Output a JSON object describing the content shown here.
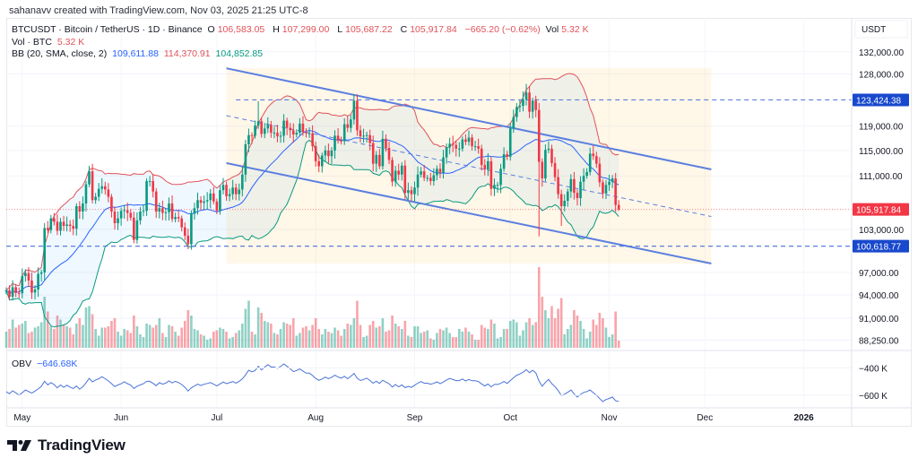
{
  "attribution": "sahanavv created with TradingView.com, Nov 03, 2025 21:25 UTC-8",
  "legend": {
    "symbol": "BTCUSDT · Bitcoin / TetherUS · 1D · Binance",
    "o_label": "O",
    "o": "106,583.05",
    "h_label": "H",
    "h": "107,299.00",
    "l_label": "L",
    "l": "105,687.22",
    "c_label": "C",
    "c": "105,917.84",
    "change": "−665.20 (−0.62%)",
    "vol_label": "Vol",
    "vol": "5.32 K",
    "vol_row_label": "Vol · BTC",
    "vol_row_value": "5.32 K",
    "bb_label": "BB (20, SMA, close, 2)",
    "bb_basis": "109,611.88",
    "bb_upper": "114,370.91",
    "bb_lower": "104,852.85"
  },
  "price_axis": {
    "unit": "USDT",
    "ticks": [
      {
        "value": 132000,
        "label": "132,000.00"
      },
      {
        "value": 128000,
        "label": "128,000.00"
      },
      {
        "value": 119000,
        "label": "119,000.00"
      },
      {
        "value": 115000,
        "label": "115,000.00"
      },
      {
        "value": 111000,
        "label": "111,000.00"
      },
      {
        "value": 103000,
        "label": "103,000.00"
      },
      {
        "value": 97000,
        "label": "97,000.00"
      },
      {
        "value": 94000,
        "label": "94,000.00"
      },
      {
        "value": 91000,
        "label": "91,000.00"
      },
      {
        "value": 88250,
        "label": "88,250.00"
      }
    ]
  },
  "obv": {
    "label": "OBV",
    "value": "−646.68K",
    "ticks": [
      {
        "value": -400000,
        "label": "−400 K"
      },
      {
        "value": -600000,
        "label": "−600 K"
      }
    ]
  },
  "time_axis": [
    {
      "date": "2025-05-01",
      "label": "May"
    },
    {
      "date": "2025-06-01",
      "label": "Jun"
    },
    {
      "date": "2025-07-01",
      "label": "Jul"
    },
    {
      "date": "2025-08-01",
      "label": "Aug"
    },
    {
      "date": "2025-09-01",
      "label": "Sep"
    },
    {
      "date": "2025-10-01",
      "label": "Oct"
    },
    {
      "date": "2025-11-01",
      "label": "Nov"
    },
    {
      "date": "2025-12-01",
      "label": "Dec"
    },
    {
      "date": "2026-01-01",
      "label": "2026",
      "bold": true
    }
  ],
  "branding": {
    "name": "TradingView"
  },
  "colors": {
    "up": "#089981",
    "down": "#f23645",
    "bb_basis": "#2962ff",
    "bb_upper": "#e0535a",
    "bb_lower": "#089981",
    "channel": "#5b7fe0",
    "level_label": "#1848cc",
    "last_price": "#f23645"
  },
  "chart_data": {
    "type": "candlestick",
    "symbol": "BTCUSDT",
    "timeframe": "1D",
    "scale": "log",
    "xlim": [
      "2025-04-26",
      "2026-01-16"
    ],
    "ylim": [
      87300,
      138400
    ],
    "first_candle_date": "2025-04-26",
    "last_candle": {
      "open": 106583.05,
      "high": 107299.0,
      "low": 105687.22,
      "close": 105917.84,
      "volume": 5320
    },
    "closes": [
      94600,
      93750,
      95000,
      94250,
      94200,
      96500,
      96900,
      95900,
      94300,
      94700,
      96800,
      97000,
      103200,
      102900,
      104600,
      104100,
      102800,
      104100,
      103500,
      103700,
      103500,
      103100,
      106400,
      105600,
      106800,
      109700,
      111700,
      107300,
      107800,
      109000,
      109400,
      108900,
      107800,
      105600,
      103900,
      104600,
      105700,
      105800,
      105400,
      104700,
      101500,
      104300,
      105600,
      105700,
      110200,
      110200,
      108600,
      105600,
      106100,
      105400,
      105500,
      106800,
      104500,
      104800,
      104600,
      103300,
      102100,
      100900,
      105300,
      106100,
      107300,
      106900,
      107100,
      107300,
      108300,
      107100,
      105700,
      108800,
      109600,
      107900,
      108200,
      109200,
      108200,
      108900,
      111200,
      116000,
      117500,
      117400,
      119100,
      119800,
      117700,
      118600,
      119200,
      117900,
      117900,
      117300,
      117400,
      119900,
      118700,
      118300,
      117600,
      117900,
      119400,
      118000,
      117800,
      117800,
      115700,
      113300,
      112500,
      114200,
      115000,
      114100,
      115000,
      117400,
      116600,
      116500,
      119300,
      118700,
      120100,
      123300,
      118300,
      117300,
      117400,
      117500,
      116200,
      112900,
      114300,
      112500,
      116900,
      115400,
      113500,
      110100,
      111800,
      111200,
      112600,
      108400,
      108800,
      108200,
      109200,
      111200,
      111700,
      110700,
      110700,
      110200,
      111100,
      112100,
      111500,
      113900,
      115500,
      116100,
      115900,
      115300,
      115300,
      116800,
      116400,
      117100,
      115700,
      115700,
      115300,
      112700,
      112000,
      113300,
      109000,
      109600,
      109600,
      112100,
      114400,
      114000,
      118600,
      120500,
      122200,
      122400,
      123500,
      124700,
      121400,
      123300,
      121700,
      113200,
      110600,
      115100,
      115300,
      113000,
      110800,
      108200,
      106400,
      107200,
      108600,
      110500,
      108400,
      107600,
      110100,
      111000,
      111600,
      114500,
      114100,
      112900,
      110000,
      108300,
      109600,
      110100,
      110600,
      106583.05,
      105917.84
    ],
    "volumes": [
      12000,
      14000,
      21000,
      15000,
      17000,
      18000,
      20000,
      11000,
      12000,
      15000,
      16000,
      19000,
      38000,
      27000,
      16000,
      14000,
      24000,
      21000,
      17000,
      16000,
      15000,
      10000,
      18000,
      22000,
      17000,
      30000,
      31000,
      25000,
      14000,
      9000,
      15000,
      15000,
      16000,
      20000,
      22000,
      12000,
      9000,
      14000,
      13000,
      11000,
      24000,
      16000,
      10000,
      8000,
      18000,
      17000,
      15000,
      17000,
      22000,
      11000,
      8000,
      17000,
      16000,
      12000,
      9000,
      15000,
      20000,
      28000,
      24000,
      14000,
      13000,
      10000,
      9000,
      6000,
      7000,
      12000,
      13000,
      15000,
      14000,
      12000,
      7000,
      8000,
      11000,
      13000,
      18000,
      29000,
      35000,
      12000,
      10000,
      30000,
      26000,
      20000,
      19000,
      18000,
      11000,
      10000,
      14000,
      19000,
      18000,
      17000,
      22000,
      9000,
      11000,
      15000,
      16000,
      13000,
      17000,
      22000,
      14000,
      10000,
      14000,
      12000,
      11000,
      15000,
      13000,
      9000,
      14000,
      18000,
      17000,
      22000,
      35000,
      17000,
      8000,
      9000,
      17000,
      20000,
      15000,
      16000,
      22000,
      12000,
      13000,
      24000,
      18000,
      16000,
      14000,
      20000,
      9000,
      8000,
      16000,
      16000,
      11000,
      12000,
      13000,
      7000,
      6000,
      11000,
      14000,
      13000,
      15000,
      11000,
      8000,
      8000,
      14000,
      12000,
      15000,
      12000,
      10000,
      6000,
      6000,
      17000,
      15000,
      14000,
      21000,
      18000,
      7000,
      8000,
      14000,
      14000,
      20000,
      21000,
      19000,
      9000,
      13000,
      19000,
      22000,
      17000,
      19000,
      60000,
      38000,
      28000,
      22000,
      31000,
      22000,
      29000,
      37000,
      10000,
      14000,
      17000,
      28000,
      24000,
      20000,
      14000,
      7000,
      12000,
      21000,
      17000,
      26000,
      22000,
      15000,
      8000,
      10000,
      27000,
      5320
    ],
    "extreme_wicks": [
      {
        "date": "2025-07-14",
        "high": 123200
      },
      {
        "date": "2025-08-14",
        "high": 124400
      },
      {
        "date": "2025-10-06",
        "high": 126200
      },
      {
        "date": "2025-10-10",
        "low": 102000
      },
      {
        "date": "2025-10-17",
        "low": 103500
      }
    ],
    "indicators": {
      "bollinger": {
        "length": 20,
        "ma": "SMA",
        "source": "close",
        "mult": 2
      },
      "obv": true
    },
    "drawings": {
      "channel": {
        "upper": [
          {
            "date": "2025-07-04",
            "price": 129000
          },
          {
            "date": "2025-12-03",
            "price": 112000
          }
        ],
        "lower": [
          {
            "date": "2025-07-04",
            "price": 113000
          },
          {
            "date": "2025-12-03",
            "price": 98200
          }
        ]
      },
      "levels": [
        {
          "price": 123424.38,
          "label": "123,424.38",
          "from": "2025-07-07"
        },
        {
          "price": 100618.77,
          "label": "100,618.77",
          "from": "2025-04-26"
        }
      ],
      "last_price": {
        "price": 105917.84,
        "label": "105,917.84"
      }
    }
  }
}
